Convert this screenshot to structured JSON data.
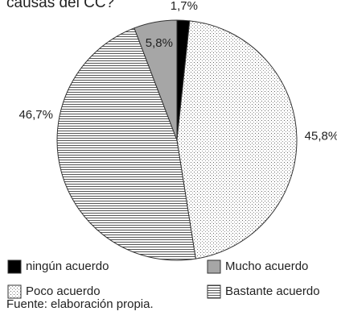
{
  "chart_data": {
    "type": "pie",
    "title": "causas del CC?",
    "categories": [
      "ningún acuerdo",
      "Poco acuerdo",
      "Bastante acuerdo",
      "Mucho acuerdo"
    ],
    "values": [
      1.7,
      45.8,
      46.7,
      5.8
    ],
    "value_labels": [
      "1,7%",
      "45,8%",
      "46,7%",
      "5,8%"
    ],
    "colors": [
      "#000000",
      "#ffffff",
      "#ffffff",
      "#a6a6a6"
    ],
    "patterns": [
      "solid",
      "dots",
      "hlines",
      "solid"
    ],
    "source": "Fuente: elaboración propia."
  }
}
